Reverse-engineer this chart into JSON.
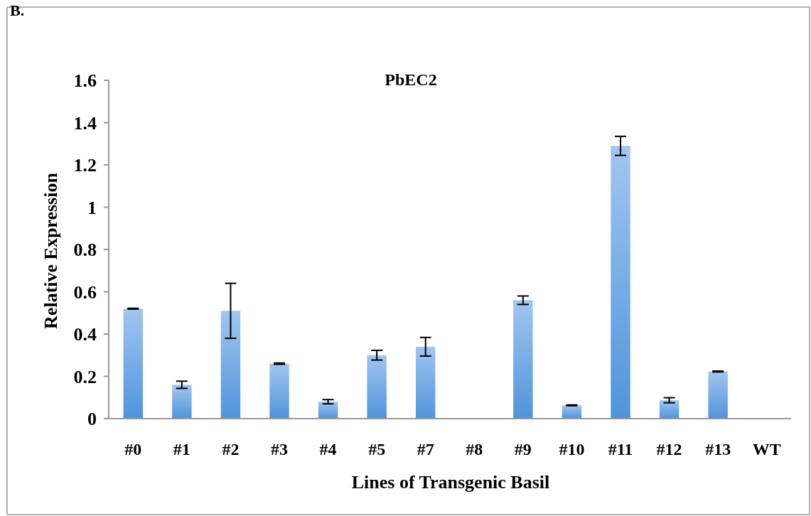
{
  "chart_data": {
    "type": "bar",
    "title": "PbEC2",
    "xlabel": "Lines of Transgenic Basil",
    "ylabel": "Relative Expression",
    "annotations": [
      "B."
    ],
    "categories": [
      "#0",
      "#1",
      "#2",
      "#3",
      "#4",
      "#5",
      "#7",
      "#8",
      "#9",
      "#10",
      "#11",
      "#12",
      "#13",
      "WT"
    ],
    "values": [
      0.52,
      0.16,
      0.51,
      0.26,
      0.08,
      0.3,
      0.34,
      0,
      0.56,
      0.063,
      1.29,
      0.087,
      0.223,
      0
    ],
    "errors": [
      0.002,
      0.017,
      0.13,
      0.003,
      0.01,
      0.023,
      0.044,
      null,
      0.02,
      0.002,
      0.045,
      0.012,
      0.002,
      null
    ],
    "color": "#6fa8e8",
    "ylim": [
      0,
      1.6
    ],
    "yticks": [
      0,
      0.2,
      0.4,
      0.6,
      0.8,
      1,
      1.2,
      1.4,
      1.6
    ],
    "grid": false
  }
}
